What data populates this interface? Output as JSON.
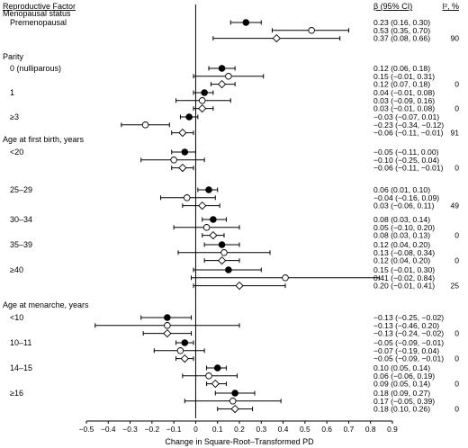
{
  "chart_data": {
    "type": "forest",
    "xlabel": "Change in Square-Root–Transformed PD",
    "xlim": [
      -0.5,
      0.9
    ],
    "xticks": [
      "−0.5",
      "−0.4",
      "−0.3",
      "−0.2",
      "−0.1",
      "0",
      "0.1",
      "0.2",
      "0.3",
      "0.4",
      "0.5",
      "0.6",
      "0.7",
      "0.8",
      "0.9"
    ],
    "header_factor": "Reproductive Factor",
    "header_ci": "β (95% CI)",
    "header_i2": "I², %",
    "marker_legend": {
      "filled": "●",
      "open": "○",
      "diamond": "◇"
    },
    "sections": [
      {
        "title": "Menopausal status",
        "groups": [
          {
            "label": "Premenopausal",
            "i2": "90",
            "rows": [
              {
                "marker": "filled",
                "beta": 0.23,
                "lo": 0.16,
                "hi": 0.3,
                "text": "0.23 (0.16, 0.30)"
              },
              {
                "marker": "open",
                "beta": 0.53,
                "lo": 0.35,
                "hi": 0.7,
                "text": "0.53 (0.35, 0.70)"
              },
              {
                "marker": "diamond",
                "beta": 0.37,
                "lo": 0.08,
                "hi": 0.66,
                "text": "0.37 (0.08, 0.66)"
              }
            ]
          }
        ]
      },
      {
        "title": "Parity",
        "groups": [
          {
            "label": "0 (nulliparous)",
            "i2": "0",
            "rows": [
              {
                "marker": "filled",
                "beta": 0.12,
                "lo": 0.06,
                "hi": 0.18,
                "text": "0.12 (0.06, 0.18)"
              },
              {
                "marker": "open",
                "beta": 0.15,
                "lo": -0.01,
                "hi": 0.31,
                "text": "0.15 (−0.01, 0.31)"
              },
              {
                "marker": "diamond",
                "beta": 0.12,
                "lo": 0.07,
                "hi": 0.18,
                "text": "0.12 (0.07, 0.18)"
              }
            ]
          },
          {
            "label": "1",
            "i2": "0",
            "rows": [
              {
                "marker": "filled",
                "beta": 0.04,
                "lo": -0.01,
                "hi": 0.08,
                "text": "0.04 (−0.01, 0.08)"
              },
              {
                "marker": "open",
                "beta": 0.03,
                "lo": -0.09,
                "hi": 0.16,
                "text": "0.03 (−0.09, 0.16)"
              },
              {
                "marker": "diamond",
                "beta": 0.03,
                "lo": -0.01,
                "hi": 0.08,
                "text": "0.03 (−0.01, 0.08)"
              }
            ]
          },
          {
            "label": "≥3",
            "i2": "91",
            "rows": [
              {
                "marker": "filled",
                "beta": -0.03,
                "lo": -0.07,
                "hi": 0.01,
                "text": "−0.03 (−0.07, 0.01)"
              },
              {
                "marker": "open",
                "beta": -0.23,
                "lo": -0.34,
                "hi": -0.12,
                "text": "−0.23 (−0.34, −0.12)"
              },
              {
                "marker": "diamond",
                "beta": -0.06,
                "lo": -0.11,
                "hi": -0.01,
                "text": "−0.06 (−0.11, −0.01)"
              }
            ]
          }
        ]
      },
      {
        "title": "Age at first birth, years",
        "groups": [
          {
            "label": "<20",
            "i2": "0",
            "rows": [
              {
                "marker": "filled",
                "beta": -0.05,
                "lo": -0.11,
                "hi": 0.0,
                "text": "−0.05 (−0.11, 0.00)"
              },
              {
                "marker": "open",
                "beta": -0.1,
                "lo": -0.25,
                "hi": 0.04,
                "text": "−0.10 (−0.25, 0.04)"
              },
              {
                "marker": "diamond",
                "beta": -0.06,
                "lo": -0.11,
                "hi": -0.01,
                "text": "−0.06 (−0.11, −0.01)"
              }
            ]
          },
          {
            "label": "25–29",
            "i2": "49",
            "rows": [
              {
                "marker": "filled",
                "beta": 0.06,
                "lo": 0.01,
                "hi": 0.1,
                "text": "0.06 (0.01, 0.10)"
              },
              {
                "marker": "open",
                "beta": -0.04,
                "lo": -0.16,
                "hi": 0.09,
                "text": "−0.04 (−0.16, 0.09)"
              },
              {
                "marker": "diamond",
                "beta": 0.03,
                "lo": -0.06,
                "hi": 0.11,
                "text": "0.03 (−0.06, 0.11)"
              }
            ]
          },
          {
            "label": "30–34",
            "i2": "0",
            "rows": [
              {
                "marker": "filled",
                "beta": 0.08,
                "lo": 0.03,
                "hi": 0.14,
                "text": "0.08 (0.03, 0.14)"
              },
              {
                "marker": "open",
                "beta": 0.05,
                "lo": -0.1,
                "hi": 0.2,
                "text": "0.05 (−0.10, 0.20)"
              },
              {
                "marker": "diamond",
                "beta": 0.08,
                "lo": 0.03,
                "hi": 0.13,
                "text": "0.08 (0.03, 0.13)"
              }
            ]
          },
          {
            "label": "35–39",
            "i2": "0",
            "rows": [
              {
                "marker": "filled",
                "beta": 0.12,
                "lo": 0.04,
                "hi": 0.2,
                "text": "0.12 (0.04, 0.20)"
              },
              {
                "marker": "open",
                "beta": 0.13,
                "lo": -0.08,
                "hi": 0.34,
                "text": "0.13 (−0.08, 0.34)"
              },
              {
                "marker": "diamond",
                "beta": 0.12,
                "lo": 0.04,
                "hi": 0.2,
                "text": "0.12 (0.04, 0.20)"
              }
            ]
          },
          {
            "label": "≥40",
            "i2": "25",
            "rows": [
              {
                "marker": "filled",
                "beta": 0.15,
                "lo": -0.01,
                "hi": 0.3,
                "text": "0.15 (−0.01, 0.30)"
              },
              {
                "marker": "open",
                "beta": 0.41,
                "lo": -0.02,
                "hi": 0.84,
                "text": "0.41 (−0.02, 0.84)"
              },
              {
                "marker": "diamond",
                "beta": 0.2,
                "lo": -0.01,
                "hi": 0.41,
                "text": "0.20 (−0.01, 0.41)"
              }
            ]
          }
        ]
      },
      {
        "title": "Age at menarche, years",
        "groups": [
          {
            "label": "<10",
            "i2": "0",
            "rows": [
              {
                "marker": "filled",
                "beta": -0.13,
                "lo": -0.25,
                "hi": -0.02,
                "text": "−0.13 (−0.25, −0.02)"
              },
              {
                "marker": "open",
                "beta": -0.13,
                "lo": -0.46,
                "hi": 0.2,
                "text": "−0.13 (−0.46, 0.20)"
              },
              {
                "marker": "diamond",
                "beta": -0.13,
                "lo": -0.24,
                "hi": -0.02,
                "text": "−0.13 (−0.24, −0.02)"
              }
            ]
          },
          {
            "label": "10–11",
            "i2": "0",
            "rows": [
              {
                "marker": "filled",
                "beta": -0.05,
                "lo": -0.09,
                "hi": -0.01,
                "text": "−0.05 (−0.09, −0.01)"
              },
              {
                "marker": "open",
                "beta": -0.07,
                "lo": -0.19,
                "hi": 0.04,
                "text": "−0.07 (−0.19, 0.04)"
              },
              {
                "marker": "diamond",
                "beta": -0.05,
                "lo": -0.09,
                "hi": -0.01,
                "text": "−0.05 (−0.09, −0.01)"
              }
            ]
          },
          {
            "label": "14–15",
            "i2": "0",
            "rows": [
              {
                "marker": "filled",
                "beta": 0.1,
                "lo": 0.05,
                "hi": 0.14,
                "text": "0.10 (0.05, 0.14)"
              },
              {
                "marker": "open",
                "beta": 0.06,
                "lo": -0.06,
                "hi": 0.19,
                "text": "0.06 (−0.06, 0.19)"
              },
              {
                "marker": "diamond",
                "beta": 0.09,
                "lo": 0.05,
                "hi": 0.14,
                "text": "0.09 (0.05, 0.14)"
              }
            ]
          },
          {
            "label": "≥16",
            "i2": "0",
            "rows": [
              {
                "marker": "filled",
                "beta": 0.18,
                "lo": 0.09,
                "hi": 0.27,
                "text": "0.18 (0.09, 0.27)"
              },
              {
                "marker": "open",
                "beta": 0.17,
                "lo": -0.05,
                "hi": 0.39,
                "text": "0.17 (−0.05, 0.39)"
              },
              {
                "marker": "diamond",
                "beta": 0.18,
                "lo": 0.1,
                "hi": 0.26,
                "text": "0.18 (0.10, 0.26)"
              }
            ]
          }
        ]
      }
    ]
  }
}
